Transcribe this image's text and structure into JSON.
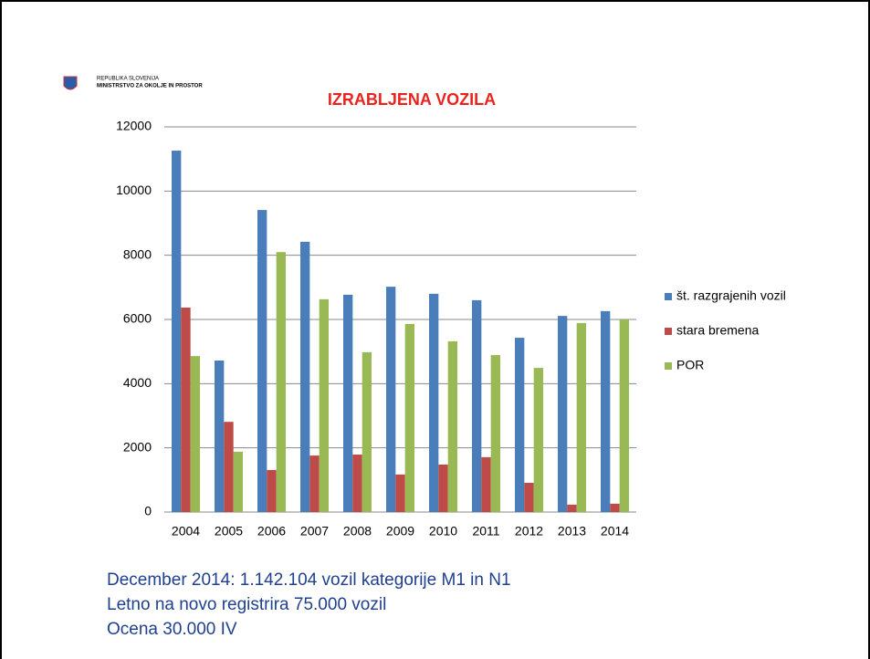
{
  "header": {
    "line1": "REPUBLIKA SLOVENIJA",
    "line2": "MINISTRSTVO ZA OKOLJE IN PROSTOR"
  },
  "chart_data": {
    "type": "bar",
    "title": "IZRABLJENA VOZILA",
    "categories": [
      "2004",
      "2005",
      "2006",
      "2007",
      "2008",
      "2009",
      "2010",
      "2011",
      "2012",
      "2013",
      "2014"
    ],
    "series": [
      {
        "name": "št. razgrajenih vozil",
        "color": "#4a7ebb",
        "values": [
          11260,
          4720,
          9410,
          8420,
          6770,
          7020,
          6800,
          6600,
          5430,
          6110,
          6260
        ]
      },
      {
        "name": "stara bremena",
        "color": "#be4b48",
        "values": [
          6370,
          2810,
          1310,
          1760,
          1790,
          1170,
          1480,
          1710,
          910,
          230,
          260
        ]
      },
      {
        "name": "POR",
        "color": "#98b954",
        "values": [
          4860,
          1880,
          8100,
          6630,
          4980,
          5860,
          5320,
          4890,
          4490,
          5890,
          6000
        ]
      }
    ],
    "ylim": [
      0,
      12000
    ],
    "yticks": [
      0,
      2000,
      4000,
      6000,
      8000,
      10000,
      12000
    ],
    "grid": true,
    "legend": "right"
  },
  "notes": [
    "December 2014: 1.142.104 vozil kategorije M1 in N1",
    "Letno na novo registrira 75.000 vozil",
    "Ocena 30.000 IV"
  ]
}
